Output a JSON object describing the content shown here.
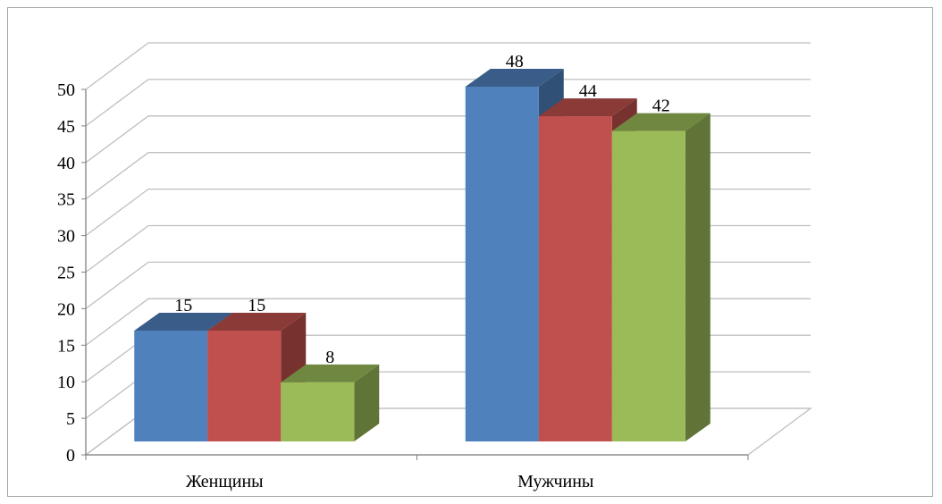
{
  "chart_data": {
    "type": "bar",
    "categories": [
      "Женщины",
      "Мужчины"
    ],
    "series": [
      {
        "values": [
          15,
          48
        ],
        "color": "#4f81bd"
      },
      {
        "values": [
          15,
          44
        ],
        "color": "#c0504d"
      },
      {
        "values": [
          8,
          42
        ],
        "color": "#9bbb59"
      }
    ],
    "y_ticks": [
      "0",
      "5",
      "10",
      "15",
      "20",
      "25",
      "30",
      "35",
      "40",
      "45",
      "50"
    ],
    "ylim": [
      0,
      50
    ],
    "grid": true,
    "legend": "none",
    "three_d": true
  }
}
